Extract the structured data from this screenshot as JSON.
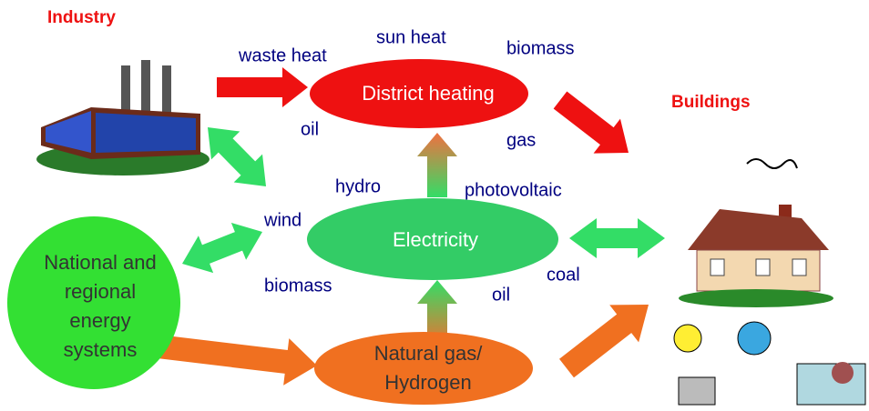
{
  "labels": {
    "industry": "Industry",
    "buildings": "Buildings"
  },
  "nodes": [
    {
      "lines": [
        "District heating"
      ]
    },
    {
      "lines": [
        "Electricity"
      ]
    },
    {
      "lines": [
        "Natural gas/",
        "Hydrogen"
      ]
    },
    {
      "lines": [
        "National and",
        "regional",
        "energy",
        "systems"
      ]
    }
  ],
  "sources": [
    "waste heat",
    "sun heat",
    "biomass",
    "oil",
    "gas",
    "hydro",
    "photovoltaic",
    "wind",
    "biomass",
    "coal",
    "oil"
  ]
}
